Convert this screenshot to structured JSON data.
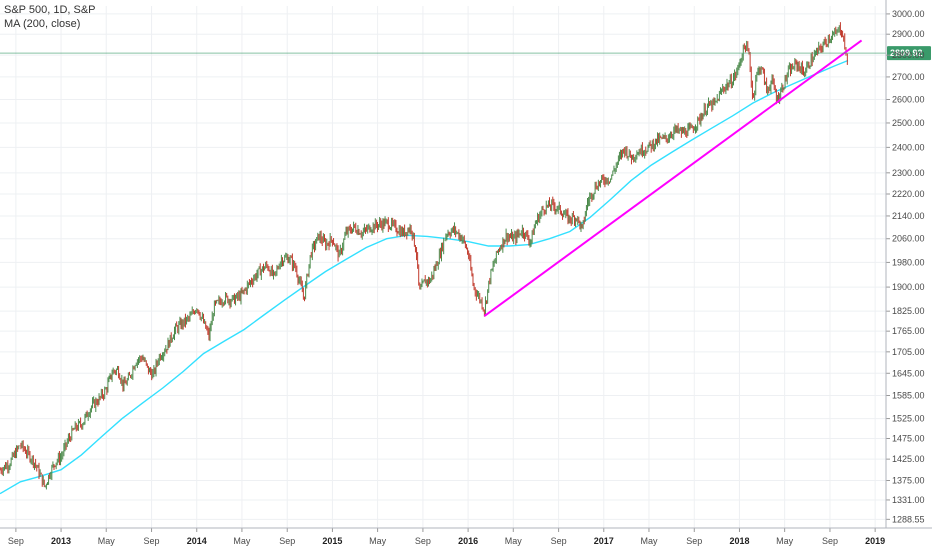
{
  "legend": {
    "symbol_line": "S&P 500, 1D, S&P",
    "indicator_line": "MA (200, close)"
  },
  "chart_data": {
    "type": "line",
    "title": "S&P 500, 1D, S&P",
    "x_ticks": [
      {
        "label": "Sep",
        "t": 2012.667,
        "year": false
      },
      {
        "label": "2013",
        "t": 2013.0,
        "year": true
      },
      {
        "label": "May",
        "t": 2013.333,
        "year": false
      },
      {
        "label": "Sep",
        "t": 2013.667,
        "year": false
      },
      {
        "label": "2014",
        "t": 2014.0,
        "year": true
      },
      {
        "label": "May",
        "t": 2014.333,
        "year": false
      },
      {
        "label": "Sep",
        "t": 2014.667,
        "year": false
      },
      {
        "label": "2015",
        "t": 2015.0,
        "year": true
      },
      {
        "label": "May",
        "t": 2015.333,
        "year": false
      },
      {
        "label": "Sep",
        "t": 2015.667,
        "year": false
      },
      {
        "label": "2016",
        "t": 2016.0,
        "year": true
      },
      {
        "label": "May",
        "t": 2016.333,
        "year": false
      },
      {
        "label": "Sep",
        "t": 2016.667,
        "year": false
      },
      {
        "label": "2017",
        "t": 2017.0,
        "year": true
      },
      {
        "label": "May",
        "t": 2017.333,
        "year": false
      },
      {
        "label": "Sep",
        "t": 2017.667,
        "year": false
      },
      {
        "label": "2018",
        "t": 2018.0,
        "year": true
      },
      {
        "label": "May",
        "t": 2018.333,
        "year": false
      },
      {
        "label": "Sep",
        "t": 2018.667,
        "year": false
      },
      {
        "label": "2019",
        "t": 2019.0,
        "year": true
      }
    ],
    "y_ticks": [
      {
        "label": "3000.00",
        "v": 3000
      },
      {
        "label": "2900.00",
        "v": 2900
      },
      {
        "label": "2800.00",
        "v": 2800
      },
      {
        "label": "2700.00",
        "v": 2700
      },
      {
        "label": "2600.00",
        "v": 2600
      },
      {
        "label": "2500.00",
        "v": 2500
      },
      {
        "label": "2400.00",
        "v": 2400
      },
      {
        "label": "2300.00",
        "v": 2300
      },
      {
        "label": "2220.00",
        "v": 2220
      },
      {
        "label": "2140.00",
        "v": 2140
      },
      {
        "label": "2060.00",
        "v": 2060
      },
      {
        "label": "1980.00",
        "v": 1980
      },
      {
        "label": "1900.00",
        "v": 1900
      },
      {
        "label": "1825.00",
        "v": 1825
      },
      {
        "label": "1765.00",
        "v": 1765
      },
      {
        "label": "1705.00",
        "v": 1705
      },
      {
        "label": "1645.00",
        "v": 1645
      },
      {
        "label": "1585.00",
        "v": 1585
      },
      {
        "label": "1525.00",
        "v": 1525
      },
      {
        "label": "1475.00",
        "v": 1475
      },
      {
        "label": "1425.00",
        "v": 1425
      },
      {
        "label": "1375.00",
        "v": 1375
      },
      {
        "label": "1331.00",
        "v": 1331
      },
      {
        "label": "1288.55",
        "v": 1288.55
      }
    ],
    "series": [
      {
        "name": "S&P 500",
        "color": "#4b8a4b",
        "down_color": "#c0392b",
        "points": [
          [
            2012.55,
            1400
          ],
          [
            2012.62,
            1415
          ],
          [
            2012.7,
            1460
          ],
          [
            2012.75,
            1440
          ],
          [
            2012.8,
            1420
          ],
          [
            2012.85,
            1385
          ],
          [
            2012.88,
            1360
          ],
          [
            2012.92,
            1395
          ],
          [
            2012.96,
            1420
          ],
          [
            2013.0,
            1430
          ],
          [
            2013.05,
            1470
          ],
          [
            2013.1,
            1500
          ],
          [
            2013.16,
            1515
          ],
          [
            2013.22,
            1555
          ],
          [
            2013.28,
            1575
          ],
          [
            2013.33,
            1600
          ],
          [
            2013.38,
            1650
          ],
          [
            2013.42,
            1655
          ],
          [
            2013.46,
            1610
          ],
          [
            2013.5,
            1630
          ],
          [
            2013.55,
            1680
          ],
          [
            2013.6,
            1690
          ],
          [
            2013.64,
            1655
          ],
          [
            2013.68,
            1640
          ],
          [
            2013.72,
            1690
          ],
          [
            2013.78,
            1720
          ],
          [
            2013.84,
            1770
          ],
          [
            2013.9,
            1790
          ],
          [
            2013.95,
            1805
          ],
          [
            2014.0,
            1840
          ],
          [
            2014.05,
            1790
          ],
          [
            2014.09,
            1750
          ],
          [
            2014.13,
            1840
          ],
          [
            2014.2,
            1865
          ],
          [
            2014.27,
            1860
          ],
          [
            2014.33,
            1875
          ],
          [
            2014.4,
            1920
          ],
          [
            2014.46,
            1950
          ],
          [
            2014.52,
            1970
          ],
          [
            2014.57,
            1930
          ],
          [
            2014.62,
            1990
          ],
          [
            2014.68,
            1995
          ],
          [
            2014.73,
            1960
          ],
          [
            2014.79,
            1865
          ],
          [
            2014.84,
            2010
          ],
          [
            2014.9,
            2070
          ],
          [
            2014.95,
            2040
          ],
          [
            2015.0,
            2060
          ],
          [
            2015.05,
            2000
          ],
          [
            2015.1,
            2080
          ],
          [
            2015.16,
            2100
          ],
          [
            2015.22,
            2080
          ],
          [
            2015.28,
            2100
          ],
          [
            2015.34,
            2110
          ],
          [
            2015.4,
            2115
          ],
          [
            2015.46,
            2100
          ],
          [
            2015.52,
            2080
          ],
          [
            2015.58,
            2100
          ],
          [
            2015.62,
            2010
          ],
          [
            2015.64,
            1880
          ],
          [
            2015.68,
            1920
          ],
          [
            2015.72,
            1920
          ],
          [
            2015.78,
            1990
          ],
          [
            2015.84,
            2080
          ],
          [
            2015.9,
            2090
          ],
          [
            2015.96,
            2060
          ],
          [
            2016.0,
            2010
          ],
          [
            2016.04,
            1900
          ],
          [
            2016.09,
            1860
          ],
          [
            2016.12,
            1830
          ],
          [
            2016.16,
            1930
          ],
          [
            2016.22,
            2020
          ],
          [
            2016.28,
            2070
          ],
          [
            2016.34,
            2060
          ],
          [
            2016.4,
            2090
          ],
          [
            2016.46,
            2050
          ],
          [
            2016.5,
            2120
          ],
          [
            2016.56,
            2170
          ],
          [
            2016.62,
            2180
          ],
          [
            2016.68,
            2160
          ],
          [
            2016.74,
            2130
          ],
          [
            2016.8,
            2135
          ],
          [
            2016.84,
            2090
          ],
          [
            2016.88,
            2190
          ],
          [
            2016.94,
            2250
          ],
          [
            2017.0,
            2275
          ],
          [
            2017.05,
            2280
          ],
          [
            2017.1,
            2340
          ],
          [
            2017.15,
            2395
          ],
          [
            2017.2,
            2360
          ],
          [
            2017.26,
            2385
          ],
          [
            2017.33,
            2400
          ],
          [
            2017.4,
            2430
          ],
          [
            2017.46,
            2435
          ],
          [
            2017.52,
            2470
          ],
          [
            2017.58,
            2460
          ],
          [
            2017.64,
            2470
          ],
          [
            2017.7,
            2510
          ],
          [
            2017.76,
            2570
          ],
          [
            2017.82,
            2580
          ],
          [
            2017.88,
            2650
          ],
          [
            2017.94,
            2680
          ],
          [
            2017.98,
            2720
          ],
          [
            2018.04,
            2850
          ],
          [
            2018.07,
            2800
          ],
          [
            2018.1,
            2590
          ],
          [
            2018.12,
            2700
          ],
          [
            2018.16,
            2750
          ],
          [
            2018.2,
            2640
          ],
          [
            2018.24,
            2680
          ],
          [
            2018.28,
            2600
          ],
          [
            2018.32,
            2660
          ],
          [
            2018.36,
            2720
          ],
          [
            2018.42,
            2760
          ],
          [
            2018.48,
            2720
          ],
          [
            2018.52,
            2770
          ],
          [
            2018.58,
            2820
          ],
          [
            2018.62,
            2850
          ],
          [
            2018.67,
            2890
          ],
          [
            2018.71,
            2900
          ],
          [
            2018.74,
            2930
          ],
          [
            2018.76,
            2905
          ],
          [
            2018.78,
            2830
          ],
          [
            2018.79,
            2740
          ],
          [
            2018.8,
            2810
          ]
        ]
      },
      {
        "name": "MA (200, close)",
        "color": "#33e0ff",
        "points": [
          [
            2012.55,
            1345
          ],
          [
            2012.7,
            1372
          ],
          [
            2012.85,
            1385
          ],
          [
            2013.0,
            1400
          ],
          [
            2013.15,
            1435
          ],
          [
            2013.3,
            1480
          ],
          [
            2013.45,
            1525
          ],
          [
            2013.6,
            1565
          ],
          [
            2013.75,
            1605
          ],
          [
            2013.9,
            1650
          ],
          [
            2014.05,
            1700
          ],
          [
            2014.2,
            1735
          ],
          [
            2014.35,
            1770
          ],
          [
            2014.5,
            1815
          ],
          [
            2014.65,
            1860
          ],
          [
            2014.8,
            1905
          ],
          [
            2014.95,
            1950
          ],
          [
            2015.1,
            1990
          ],
          [
            2015.25,
            2030
          ],
          [
            2015.4,
            2060
          ],
          [
            2015.55,
            2072
          ],
          [
            2015.7,
            2068
          ],
          [
            2015.85,
            2060
          ],
          [
            2016.0,
            2050
          ],
          [
            2016.15,
            2035
          ],
          [
            2016.3,
            2035
          ],
          [
            2016.45,
            2040
          ],
          [
            2016.6,
            2060
          ],
          [
            2016.75,
            2085
          ],
          [
            2016.9,
            2135
          ],
          [
            2017.05,
            2200
          ],
          [
            2017.2,
            2270
          ],
          [
            2017.35,
            2330
          ],
          [
            2017.5,
            2380
          ],
          [
            2017.65,
            2430
          ],
          [
            2017.8,
            2480
          ],
          [
            2017.95,
            2530
          ],
          [
            2018.1,
            2585
          ],
          [
            2018.25,
            2630
          ],
          [
            2018.4,
            2670
          ],
          [
            2018.55,
            2710
          ],
          [
            2018.7,
            2750
          ],
          [
            2018.8,
            2775
          ]
        ]
      }
    ],
    "trendline": {
      "start": [
        2016.12,
        1810
      ],
      "end": [
        2018.9,
        2870
      ],
      "color": "#ff00ff"
    },
    "price_line": {
      "value": 2809.92,
      "label": "2809.92",
      "color": "#3a9a6a"
    },
    "x_range": [
      2012.55,
      2019.08
    ],
    "y_range": [
      1270,
      3040
    ],
    "y_scale": "log",
    "grid": true
  }
}
